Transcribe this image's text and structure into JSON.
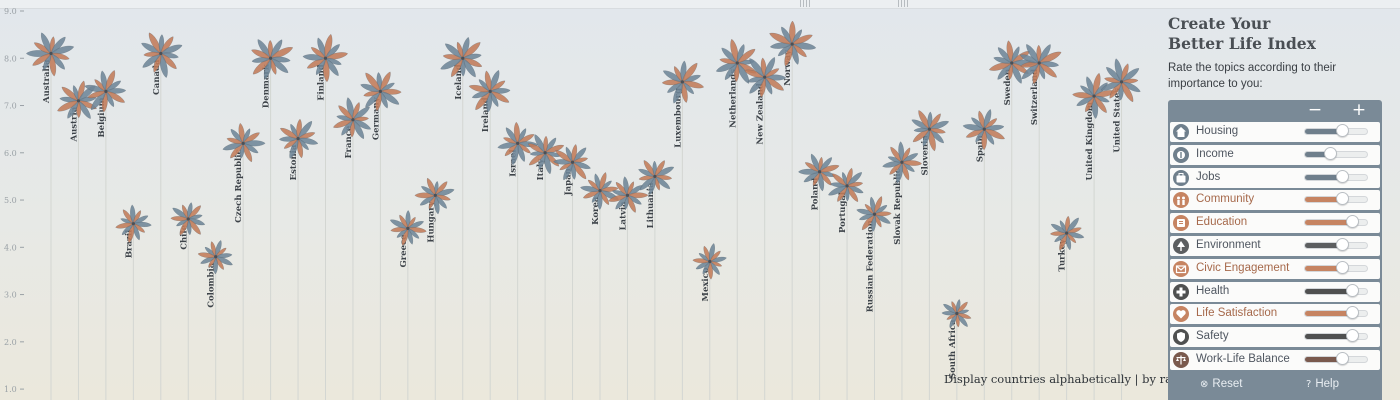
{
  "header": {
    "title_line1": "Create Your",
    "title_line2": "Better Life Index",
    "subtitle": "Rate the topics according to their importance to you:"
  },
  "panel": {
    "minus": "−",
    "plus": "+",
    "reset": "Reset",
    "help": "Help",
    "topics": [
      {
        "label": "Housing",
        "icon": "house-icon",
        "color": "#6f7f8c",
        "weight": 0.62
      },
      {
        "label": "Income",
        "icon": "income-icon",
        "color": "#6f7f8c",
        "weight": 0.42
      },
      {
        "label": "Jobs",
        "icon": "jobs-icon",
        "color": "#6f7f8c",
        "weight": 0.62
      },
      {
        "label": "Community",
        "icon": "community-icon",
        "color": "#c68462",
        "weight": 0.62
      },
      {
        "label": "Education",
        "icon": "education-icon",
        "color": "#c68462",
        "weight": 0.78
      },
      {
        "label": "Environment",
        "icon": "tree-icon",
        "color": "#5c5e60",
        "weight": 0.62
      },
      {
        "label": "Civic Engagement",
        "icon": "envelope-icon",
        "color": "#c68462",
        "weight": 0.62
      },
      {
        "label": "Health",
        "icon": "health-cross-icon",
        "color": "#4f5050",
        "weight": 0.78
      },
      {
        "label": "Life Satisfaction",
        "icon": "heart-icon",
        "color": "#c68462",
        "weight": 0.78
      },
      {
        "label": "Safety",
        "icon": "safety-icon",
        "color": "#4f5050",
        "weight": 0.78
      },
      {
        "label": "Work-Life Balance",
        "icon": "scale-icon",
        "color": "#7a5a4e",
        "weight": 0.62
      }
    ]
  },
  "sort": {
    "prefix": "Display countries",
    "alpha": "alphabetically",
    "sep": "|",
    "rank": "by rank"
  },
  "chart_data": {
    "type": "scatter",
    "xlabel": "",
    "ylabel": "",
    "ylim": [
      0.6,
      9.0
    ],
    "y_ticks": [
      "1.0",
      "2.0",
      "3.0",
      "4.0",
      "5.0",
      "6.0",
      "7.0",
      "8.0",
      "9.0"
    ],
    "colors": {
      "blue": "#6e8597",
      "copper": "#c27b59",
      "stem": "#d3d6d2"
    },
    "countries": [
      {
        "name": "Australia",
        "score": 8.1
      },
      {
        "name": "Austria",
        "score": 7.1
      },
      {
        "name": "Belgium",
        "score": 7.3
      },
      {
        "name": "Brazil",
        "score": 4.5
      },
      {
        "name": "Canada",
        "score": 8.1
      },
      {
        "name": "Chile",
        "score": 4.6
      },
      {
        "name": "Colombia",
        "score": 3.8
      },
      {
        "name": "Czech Republic",
        "score": 6.2
      },
      {
        "name": "Denmark",
        "score": 8.0
      },
      {
        "name": "Estonia",
        "score": 6.3
      },
      {
        "name": "Finland",
        "score": 8.0
      },
      {
        "name": "France",
        "score": 6.7
      },
      {
        "name": "Germany",
        "score": 7.3
      },
      {
        "name": "Greece",
        "score": 4.4
      },
      {
        "name": "Hungary",
        "score": 5.1
      },
      {
        "name": "Iceland",
        "score": 8.0
      },
      {
        "name": "Ireland",
        "score": 7.3
      },
      {
        "name": "Israel",
        "score": 6.2
      },
      {
        "name": "Italy",
        "score": 6.0
      },
      {
        "name": "Japan",
        "score": 5.8
      },
      {
        "name": "Korea",
        "score": 5.2
      },
      {
        "name": "Latvia",
        "score": 5.1
      },
      {
        "name": "Lithuania",
        "score": 5.5
      },
      {
        "name": "Luxembourg",
        "score": 7.5
      },
      {
        "name": "Mexico",
        "score": 3.7
      },
      {
        "name": "Netherlands",
        "score": 7.9
      },
      {
        "name": "New Zealand",
        "score": 7.6
      },
      {
        "name": "Norway",
        "score": 8.3
      },
      {
        "name": "Poland",
        "score": 5.6
      },
      {
        "name": "Portugal",
        "score": 5.3
      },
      {
        "name": "Russian Federation",
        "score": 4.7
      },
      {
        "name": "Slovak Republic",
        "score": 5.8
      },
      {
        "name": "Slovenia",
        "score": 6.5
      },
      {
        "name": "South Africa",
        "score": 2.6
      },
      {
        "name": "Spain",
        "score": 6.5
      },
      {
        "name": "Sweden",
        "score": 7.9
      },
      {
        "name": "Switzerland",
        "score": 7.9
      },
      {
        "name": "Turkey",
        "score": 4.3
      },
      {
        "name": "United Kingdom",
        "score": 7.2
      },
      {
        "name": "United States",
        "score": 7.5
      }
    ]
  }
}
